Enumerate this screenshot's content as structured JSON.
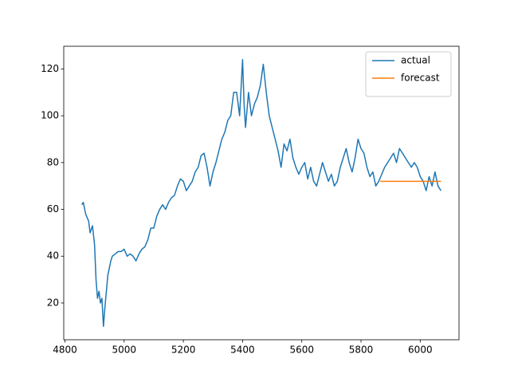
{
  "chart_data": {
    "type": "line",
    "xlim": [
      4796,
      6131
    ],
    "ylim": [
      4.3,
      129.7
    ],
    "xticks": [
      4800,
      5000,
      5200,
      5400,
      5600,
      5800,
      6000
    ],
    "yticks": [
      20,
      40,
      60,
      80,
      100,
      120
    ],
    "grid": false,
    "legend": "upper right",
    "series": [
      {
        "name": "actual",
        "color": "#1f77b4",
        "x": [
          4857,
          4862,
          4870,
          4880,
          4885,
          4893,
          4900,
          4905,
          4910,
          4915,
          4920,
          4925,
          4930,
          4935,
          4940,
          4945,
          4950,
          4955,
          4960,
          4970,
          4980,
          4990,
          5000,
          5010,
          5020,
          5030,
          5040,
          5050,
          5060,
          5070,
          5080,
          5090,
          5100,
          5110,
          5120,
          5130,
          5140,
          5150,
          5160,
          5170,
          5180,
          5190,
          5200,
          5210,
          5220,
          5230,
          5240,
          5250,
          5260,
          5270,
          5280,
          5290,
          5300,
          5310,
          5320,
          5330,
          5340,
          5350,
          5360,
          5370,
          5380,
          5390,
          5400,
          5405,
          5410,
          5420,
          5430,
          5440,
          5450,
          5460,
          5470,
          5480,
          5490,
          5500,
          5510,
          5520,
          5530,
          5540,
          5550,
          5560,
          5570,
          5580,
          5590,
          5600,
          5610,
          5620,
          5630,
          5640,
          5650,
          5660,
          5670,
          5680,
          5690,
          5700,
          5710,
          5720,
          5730,
          5740,
          5750,
          5760,
          5770,
          5780,
          5790,
          5800,
          5810,
          5820,
          5830,
          5840,
          5850,
          5860,
          5870,
          5880,
          5890,
          5900,
          5910,
          5920,
          5930,
          5940,
          5950,
          5960,
          5970,
          5980,
          5990,
          6000,
          6010,
          6020,
          6030,
          6040,
          6050,
          6060,
          6070
        ],
        "values": [
          62,
          63,
          58,
          55,
          50,
          53,
          45,
          30,
          22,
          25,
          20,
          22,
          10,
          18,
          25,
          32,
          35,
          38,
          40,
          41,
          42,
          42,
          43,
          40,
          41,
          40,
          38,
          41,
          43,
          44,
          47,
          52,
          52,
          57,
          60,
          62,
          60,
          63,
          65,
          66,
          70,
          73,
          72,
          68,
          70,
          72,
          76,
          78,
          83,
          84,
          78,
          70,
          76,
          80,
          85,
          90,
          93,
          98,
          100,
          110,
          110,
          100,
          124,
          105,
          95,
          110,
          100,
          105,
          108,
          113,
          122,
          110,
          100,
          95,
          90,
          85,
          78,
          88,
          85,
          90,
          82,
          78,
          75,
          78,
          80,
          73,
          78,
          72,
          70,
          75,
          80,
          76,
          72,
          75,
          70,
          72,
          78,
          82,
          86,
          80,
          76,
          82,
          90,
          86,
          84,
          78,
          74,
          76,
          70,
          72,
          75,
          78,
          80,
          82,
          84,
          80,
          86,
          84,
          82,
          80,
          78,
          80,
          78,
          74,
          72,
          68,
          74,
          70,
          76,
          70,
          68
        ]
      },
      {
        "name": "forecast",
        "color": "#ff7f0e",
        "x": [
          5865,
          6070
        ],
        "values": [
          72,
          72
        ]
      }
    ]
  }
}
